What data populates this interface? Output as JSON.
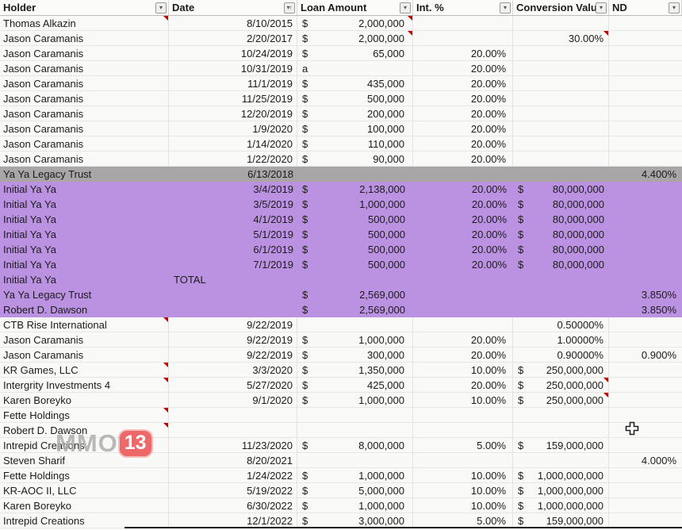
{
  "table": {
    "columns": [
      {
        "label": "Holder",
        "icon": "filter"
      },
      {
        "label": "Date",
        "icon": "sort-filter"
      },
      {
        "label": "Loan Amount",
        "icon": "filter"
      },
      {
        "label": "Int. %",
        "icon": "filter"
      },
      {
        "label": "Conversion Valu",
        "icon": "filter"
      },
      {
        "label": "ND",
        "icon": "filter"
      }
    ],
    "rows": [
      {
        "holder": "Thomas Alkazin",
        "date": "8/10/2015",
        "loan_sym": "$",
        "loan_val": "2,000,000",
        "int_val": "",
        "conv_sym": "",
        "conv_val": "",
        "nd_val": "",
        "bg": "white",
        "markers": [
          "holder",
          "loan"
        ]
      },
      {
        "holder": "Jason Caramanis",
        "date": "2/20/2017",
        "loan_sym": "$",
        "loan_val": "2,000,000",
        "int_val": "",
        "conv_sym": "",
        "conv_val": "30.00%",
        "nd_val": "",
        "bg": "white",
        "markers": [
          "loan",
          "conv"
        ]
      },
      {
        "holder": "Jason Caramanis",
        "date": "10/24/2019",
        "loan_sym": "$",
        "loan_val": "65,000",
        "int_val": "20.00%",
        "conv_sym": "",
        "conv_val": "",
        "nd_val": "",
        "bg": "white",
        "markers": []
      },
      {
        "holder": "Jason Caramanis",
        "date": "10/31/2019",
        "loan_sym": "a",
        "loan_val": "",
        "int_val": "20.00%",
        "conv_sym": "",
        "conv_val": "",
        "nd_val": "",
        "bg": "white",
        "markers": []
      },
      {
        "holder": "Jason Caramanis",
        "date": "11/1/2019",
        "loan_sym": "$",
        "loan_val": "435,000",
        "int_val": "20.00%",
        "conv_sym": "",
        "conv_val": "",
        "nd_val": "",
        "bg": "white",
        "markers": []
      },
      {
        "holder": "Jason Caramanis",
        "date": "11/25/2019",
        "loan_sym": "$",
        "loan_val": "500,000",
        "int_val": "20.00%",
        "conv_sym": "",
        "conv_val": "",
        "nd_val": "",
        "bg": "white",
        "markers": []
      },
      {
        "holder": "Jason Caramanis",
        "date": "12/20/2019",
        "loan_sym": "$",
        "loan_val": "200,000",
        "int_val": "20.00%",
        "conv_sym": "",
        "conv_val": "",
        "nd_val": "",
        "bg": "white",
        "markers": []
      },
      {
        "holder": "Jason Caramanis",
        "date": "1/9/2020",
        "loan_sym": "$",
        "loan_val": "100,000",
        "int_val": "20.00%",
        "conv_sym": "",
        "conv_val": "",
        "nd_val": "",
        "bg": "white",
        "markers": []
      },
      {
        "holder": "Jason Caramanis",
        "date": "1/14/2020",
        "loan_sym": "$",
        "loan_val": "110,000",
        "int_val": "20.00%",
        "conv_sym": "",
        "conv_val": "",
        "nd_val": "",
        "bg": "white",
        "markers": []
      },
      {
        "holder": "Jason Caramanis",
        "date": "1/22/2020",
        "loan_sym": "$",
        "loan_val": "90,000",
        "int_val": "20.00%",
        "conv_sym": "",
        "conv_val": "",
        "nd_val": "",
        "bg": "white",
        "markers": []
      },
      {
        "holder": "Ya Ya Legacy Trust",
        "date": "6/13/2018",
        "loan_sym": "",
        "loan_val": "",
        "int_val": "",
        "conv_sym": "",
        "conv_val": "",
        "nd_val": "4.400%",
        "bg": "gray",
        "markers": []
      },
      {
        "holder": "Initial Ya Ya",
        "date": "3/4/2019",
        "loan_sym": "$",
        "loan_val": "2,138,000",
        "int_val": "20.00%",
        "conv_sym": "$",
        "conv_val": "80,000,000",
        "nd_val": "",
        "bg": "purple",
        "markers": []
      },
      {
        "holder": "Initial Ya Ya",
        "date": "3/5/2019",
        "loan_sym": "$",
        "loan_val": "1,000,000",
        "int_val": "20.00%",
        "conv_sym": "$",
        "conv_val": "80,000,000",
        "nd_val": "",
        "bg": "purple",
        "markers": []
      },
      {
        "holder": "Initial Ya Ya",
        "date": "4/1/2019",
        "loan_sym": "$",
        "loan_val": "500,000",
        "int_val": "20.00%",
        "conv_sym": "$",
        "conv_val": "80,000,000",
        "nd_val": "",
        "bg": "purple",
        "markers": []
      },
      {
        "holder": "Initial Ya Ya",
        "date": "5/1/2019",
        "loan_sym": "$",
        "loan_val": "500,000",
        "int_val": "20.00%",
        "conv_sym": "$",
        "conv_val": "80,000,000",
        "nd_val": "",
        "bg": "purple",
        "markers": []
      },
      {
        "holder": "Initial Ya Ya",
        "date": "6/1/2019",
        "loan_sym": "$",
        "loan_val": "500,000",
        "int_val": "20.00%",
        "conv_sym": "$",
        "conv_val": "80,000,000",
        "nd_val": "",
        "bg": "purple",
        "markers": []
      },
      {
        "holder": "Initial Ya Ya",
        "date": "7/1/2019",
        "loan_sym": "$",
        "loan_val": "500,000",
        "int_val": "20.00%",
        "conv_sym": "$",
        "conv_val": "80,000,000",
        "nd_val": "",
        "bg": "purple",
        "markers": []
      },
      {
        "holder": "Initial Ya Ya",
        "date": "TOTAL",
        "loan_sym": "",
        "loan_val": "",
        "int_val": "",
        "conv_sym": "",
        "conv_val": "",
        "nd_val": "",
        "bg": "purple",
        "markers": [],
        "total": true
      },
      {
        "holder": "Ya Ya Legacy Trust",
        "date": "",
        "loan_sym": "$",
        "loan_val": "2,569,000",
        "int_val": "",
        "conv_sym": "",
        "conv_val": "",
        "nd_val": "3.850%",
        "bg": "purple",
        "markers": []
      },
      {
        "holder": "Robert D. Dawson",
        "date": "",
        "loan_sym": "$",
        "loan_val": "2,569,000",
        "int_val": "",
        "conv_sym": "",
        "conv_val": "",
        "nd_val": "3.850%",
        "bg": "purple",
        "markers": []
      },
      {
        "holder": "CTB Rise International",
        "date": "9/22/2019",
        "loan_sym": "",
        "loan_val": "",
        "int_val": "",
        "conv_sym": "",
        "conv_val": "0.50000%",
        "nd_val": "",
        "bg": "white",
        "markers": [
          "holder"
        ]
      },
      {
        "holder": "Jason Caramanis",
        "date": "9/22/2019",
        "loan_sym": "$",
        "loan_val": "1,000,000",
        "int_val": "20.00%",
        "conv_sym": "",
        "conv_val": "1.00000%",
        "nd_val": "",
        "bg": "white",
        "markers": []
      },
      {
        "holder": "Jason Caramanis",
        "date": "9/22/2019",
        "loan_sym": "$",
        "loan_val": "300,000",
        "int_val": "20.00%",
        "conv_sym": "",
        "conv_val": "0.90000%",
        "nd_val": "0.900%",
        "bg": "white",
        "markers": []
      },
      {
        "holder": "KR Games, LLC",
        "date": "3/3/2020",
        "loan_sym": "$",
        "loan_val": "1,350,000",
        "int_val": "10.00%",
        "conv_sym": "$",
        "conv_val": "250,000,000",
        "nd_val": "",
        "bg": "white",
        "markers": [
          "holder"
        ]
      },
      {
        "holder": "Intergrity Investments 4",
        "date": "5/27/2020",
        "loan_sym": "$",
        "loan_val": "425,000",
        "int_val": "20.00%",
        "conv_sym": "$",
        "conv_val": "250,000,000",
        "nd_val": "",
        "bg": "white",
        "markers": [
          "holder",
          "conv"
        ]
      },
      {
        "holder": "Karen Boreyko",
        "date": "9/1/2020",
        "loan_sym": "$",
        "loan_val": "1,000,000",
        "int_val": "10.00%",
        "conv_sym": "$",
        "conv_val": "250,000,000",
        "nd_val": "",
        "bg": "white",
        "markers": [
          "conv"
        ]
      },
      {
        "holder": "Fette Holdings",
        "date": "",
        "loan_sym": "",
        "loan_val": "",
        "int_val": "",
        "conv_sym": "",
        "conv_val": "",
        "nd_val": "",
        "bg": "white",
        "markers": [
          "holder"
        ]
      },
      {
        "holder": "Robert D. Dawson",
        "date": "",
        "loan_sym": "",
        "loan_val": "",
        "int_val": "",
        "conv_sym": "",
        "conv_val": "",
        "nd_val": "",
        "bg": "white",
        "markers": [
          "holder"
        ]
      },
      {
        "holder": "Intrepid Creations",
        "date": "11/23/2020",
        "loan_sym": "$",
        "loan_val": "8,000,000",
        "int_val": "5.00%",
        "conv_sym": "$",
        "conv_val": "159,000,000",
        "nd_val": "",
        "bg": "white",
        "markers": []
      },
      {
        "holder": "Steven Sharif",
        "date": "8/20/2021",
        "loan_sym": "",
        "loan_val": "",
        "int_val": "",
        "conv_sym": "",
        "conv_val": "",
        "nd_val": "4.000%",
        "bg": "white",
        "markers": []
      },
      {
        "holder": "Fette Holdings",
        "date": "1/24/2022",
        "loan_sym": "$",
        "loan_val": "1,000,000",
        "int_val": "10.00%",
        "conv_sym": "$",
        "conv_val": "1,000,000,000",
        "nd_val": "",
        "bg": "white",
        "markers": []
      },
      {
        "holder": "KR-AOC II, LLC",
        "date": "5/19/2022",
        "loan_sym": "$",
        "loan_val": "5,000,000",
        "int_val": "10.00%",
        "conv_sym": "$",
        "conv_val": "1,000,000,000",
        "nd_val": "",
        "bg": "white",
        "markers": []
      },
      {
        "holder": "Karen Boreyko",
        "date": "6/30/2022",
        "loan_sym": "$",
        "loan_val": "1,000,000",
        "int_val": "10.00%",
        "conv_sym": "$",
        "conv_val": "1,000,000,000",
        "nd_val": "",
        "bg": "white",
        "markers": []
      },
      {
        "holder": "Intrepid Creations",
        "date": "12/1/2022",
        "loan_sym": "$",
        "loan_val": "3,000,000",
        "int_val": "5.00%",
        "conv_sym": "$",
        "conv_val": "159,000,000",
        "nd_val": "",
        "bg": "white",
        "markers": []
      }
    ]
  },
  "watermark": {
    "prefix": "MMO",
    "badge": "13"
  },
  "colors": {
    "purple_row": "#bb92e2",
    "gray_row": "#a8a6a7",
    "comment_marker": "#c00000",
    "watermark_badge": "#eb5050",
    "gridline": "#e3e3e0"
  }
}
